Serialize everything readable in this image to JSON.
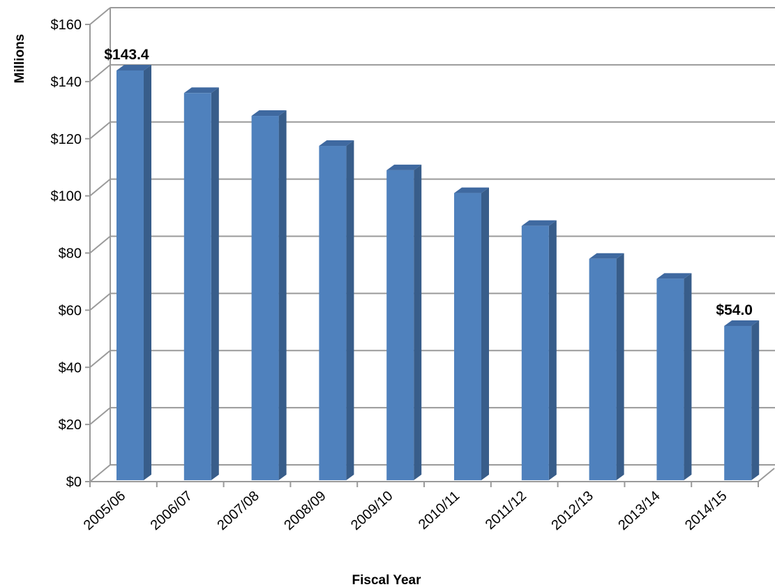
{
  "chart_data": {
    "type": "bar",
    "title": "",
    "xlabel": "Fiscal Year",
    "ylabel": "Millions",
    "categories": [
      "2005/06",
      "2006/07",
      "2007/08",
      "2008/09",
      "2009/10",
      "2010/11",
      "2011/12",
      "2012/13",
      "2013/14",
      "2014/15"
    ],
    "values": [
      143.4,
      135.5,
      127.5,
      117,
      108.5,
      100.5,
      89,
      77.5,
      70.5,
      54.0
    ],
    "ylim": [
      0,
      160
    ],
    "yticks": [
      "$0",
      "$20",
      "$40",
      "$60",
      "$80",
      "$100",
      "$120",
      "$140",
      "$160"
    ],
    "data_labels": [
      {
        "category": "2005/06",
        "text": "$143.4"
      },
      {
        "category": "2014/15",
        "text": "$54.0"
      }
    ],
    "grid": true,
    "legend": "none",
    "style": "3d-column"
  },
  "colors": {
    "bar_front": "#4f81bd",
    "bar_side": "#385d8a",
    "bar_top": "#3f69a0",
    "grid": "#9a9a9a"
  }
}
